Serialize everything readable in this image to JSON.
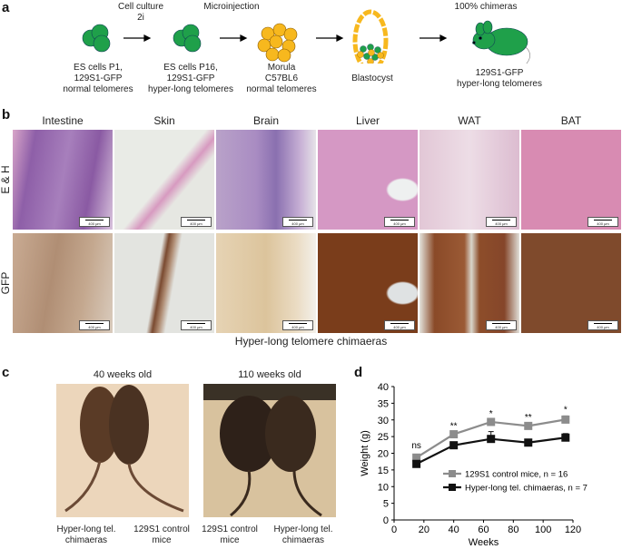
{
  "panel_a": {
    "label": "a",
    "steps": [
      {
        "caption": "ES cells P1,\n129S1-GFP\nnormal telomeres"
      },
      {
        "caption": "ES cells P16,\n129S1-GFP\nhyper-long telomeres"
      },
      {
        "caption": "Morula\nC57BL6\nnormal telomeres"
      },
      {
        "caption": "Blastocyst"
      },
      {
        "caption": "129S1-GFP\nhyper-long telomeres"
      }
    ],
    "arrows": [
      "Cell culture\n2i",
      "Microinjection",
      "",
      "100% chimeras"
    ],
    "colors": {
      "gfp": "#1fa04a",
      "host": "#f7b81e"
    }
  },
  "panel_b": {
    "label": "b",
    "columns": [
      "Intestine",
      "Skin",
      "Brain",
      "Liver",
      "WAT",
      "BAT"
    ],
    "rows": [
      "E & H",
      "GFP"
    ],
    "scale_bar": "400 μm",
    "caption": "Hyper-long telomere chimaeras"
  },
  "panel_c": {
    "label": "c",
    "photos": [
      {
        "title": "40 weeks old",
        "left": "Hyper-long tel.\nchimaeras",
        "right": "129S1 control\nmice"
      },
      {
        "title": "110 weeks old",
        "left": "129S1 control\nmice",
        "right": "Hyper-long tel.\nchimaeras"
      }
    ]
  },
  "chart_data": {
    "label": "d",
    "type": "line",
    "xlabel": "Weeks",
    "ylabel": "Weight (g)",
    "xlim": [
      0,
      120
    ],
    "ylim": [
      0,
      40
    ],
    "xticks": [
      0,
      20,
      40,
      60,
      80,
      100,
      120
    ],
    "yticks": [
      0,
      5,
      10,
      15,
      20,
      25,
      30,
      35,
      40
    ],
    "x": [
      15,
      40,
      65,
      90,
      115
    ],
    "significance": [
      "ns",
      "**",
      "*",
      "**",
      "*"
    ],
    "legend_position": "bottom-right",
    "series": [
      {
        "name": "129S1 control mice, n = 16",
        "color": "#8c8c8c",
        "values": [
          18.7,
          25.7,
          29.4,
          28.2,
          30.1
        ],
        "error": [
          0.4,
          0.5,
          0.6,
          0.6,
          1.1
        ]
      },
      {
        "name": "Hyper-long tel. chimaeras, n = 7",
        "color": "#111111",
        "values": [
          16.8,
          22.4,
          24.3,
          23.2,
          24.7
        ],
        "error": [
          0.4,
          0.6,
          2.2,
          1.0,
          1.2
        ]
      }
    ]
  }
}
